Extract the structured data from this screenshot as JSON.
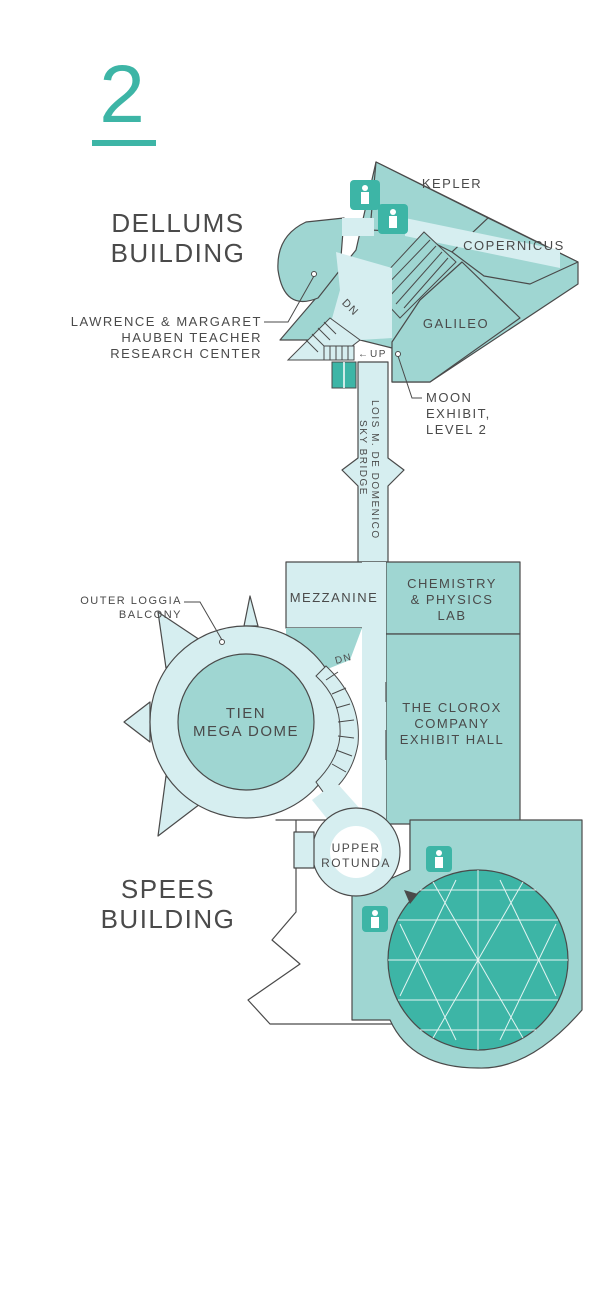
{
  "floor": {
    "number": "2"
  },
  "colors": {
    "accent": "#3db5a6",
    "room": "#9fd6d2",
    "hall": "#d6eef0",
    "outline": "#4a4a4a",
    "text": "#4a4a4a"
  },
  "buildings": [
    {
      "id": "dellums",
      "lines": [
        "DELLUMS",
        "BUILDING"
      ]
    },
    {
      "id": "spees",
      "lines": [
        "SPEES",
        "BUILDING"
      ]
    }
  ],
  "rooms": {
    "kepler": "KEPLER",
    "copernicus": "COPERNICUS",
    "galileo": "GALILEO",
    "mezzanine": "MEZZANINE",
    "lab": [
      "CHEMISTRY",
      "& PHYSICS",
      "LAB"
    ],
    "clorox": [
      "THE CLOROX",
      "COMPANY",
      "EXHIBIT HALL"
    ],
    "dome": [
      "TIEN",
      "MEGA DOME"
    ],
    "rotunda": [
      "UPPER",
      "ROTUNDA"
    ]
  },
  "callouts": {
    "hauben": [
      "LAWRENCE & MARGARET",
      "HAUBEN TEACHER",
      "RESEARCH CENTER"
    ],
    "moon": [
      "MOON",
      "EXHIBIT,",
      "LEVEL 2"
    ],
    "loggia": [
      "OUTER LOGGIA",
      "BALCONY"
    ]
  },
  "bridge": [
    "LOIS M. DE DOMENICO",
    "SKY BRIDGE"
  ],
  "stairs": {
    "dn_top": "DN",
    "up": "UP",
    "dn_mezz": "DN"
  },
  "icons": [
    "restroom-icon",
    "elevator-icon",
    "stairs-icon",
    "entrance-arrow-icon"
  ]
}
